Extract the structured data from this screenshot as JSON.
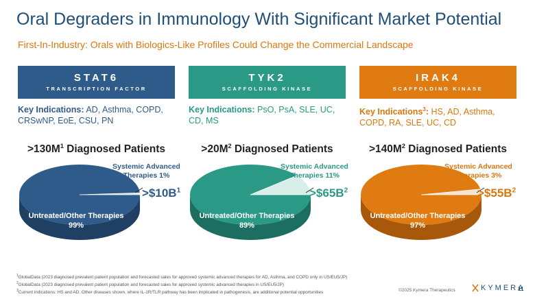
{
  "title": "Oral Degraders in Immunology With Significant Market Potential",
  "subtitle": "First-In-Industry: Orals with Biologics-Like Profiles Could Change the Commercial Landscape",
  "colors": {
    "stat6": "#2f5b8a",
    "tyk2": "#2a9985",
    "irak4": "#e07b12"
  },
  "columns": [
    {
      "name": "STAT6",
      "subname": "TRANSCRIPTION FACTOR",
      "indications_label": "Key Indications:",
      "indications_sup": "",
      "indications_line1": "AD, Asthma, COPD,",
      "indications_line2": "CRSwNP, EoE, CSU, PN",
      "patients": ">130M",
      "patients_sup": "1",
      "patients_suffix": "Diagnosed Patients",
      "systemic_label1": "Systemic Advanced",
      "systemic_label2": "Therapies 1%",
      "market_value": ">$10B",
      "market_sup": "1",
      "untreated_label": "Untreated/Other Therapies",
      "untreated_pct": "99%",
      "systemic_share": 1
    },
    {
      "name": "TYK2",
      "subname": "SCAFFOLDING KINASE",
      "indications_label": "Key Indications:",
      "indications_sup": "",
      "indications_line1": "PsO, PsA, SLE, UC,",
      "indications_line2": "CD, MS",
      "patients": ">20M",
      "patients_sup": "2",
      "patients_suffix": "Diagnosed Patients",
      "systemic_label1": "Systemic Advanced",
      "systemic_label2": "Therapies 11%",
      "market_value": ">$65B",
      "market_sup": "2",
      "untreated_label": "Untreated/Other Therapies",
      "untreated_pct": "89%",
      "systemic_share": 11
    },
    {
      "name": "IRAK4",
      "subname": "SCAFFOLDING KINASE",
      "indications_label": "Key Indications",
      "indications_sup": "3",
      "indications_line1": "HS, AD, Asthma,",
      "indications_line2": "COPD, RA, SLE, UC, CD",
      "patients": ">140M",
      "patients_sup": "2",
      "patients_suffix": "Diagnosed Patients",
      "systemic_label1": "Systemic Advanced",
      "systemic_label2": "Therapies 3%",
      "market_value": ">$55B",
      "market_sup": "2",
      "untreated_label": "Untreated/Other Therapies",
      "untreated_pct": "97%",
      "systemic_share": 3
    }
  ],
  "footnotes": [
    {
      "num": "1",
      "text": "GlobalData (2023 diagnosed prevalent patient population and forecasted sales for approved systemic advanced therapies for AD, Asthma, and COPD only in US/EU5/JP)"
    },
    {
      "num": "2",
      "text": "GlobalData (2023 diagnosed prevalent patient population and forecasted sales for approved systemic advanced therapies in US/EU5/JP)"
    },
    {
      "num": "3",
      "text": "Current indications: HS and AD. Other diseases shown, where IL-1R/TLR pathway has been implicated in pathogenesis, are additional potential opportunities"
    }
  ],
  "copyright": "©2025 Kymera Therapeutics",
  "logo_text": "KYMERA",
  "page_number": "11"
}
